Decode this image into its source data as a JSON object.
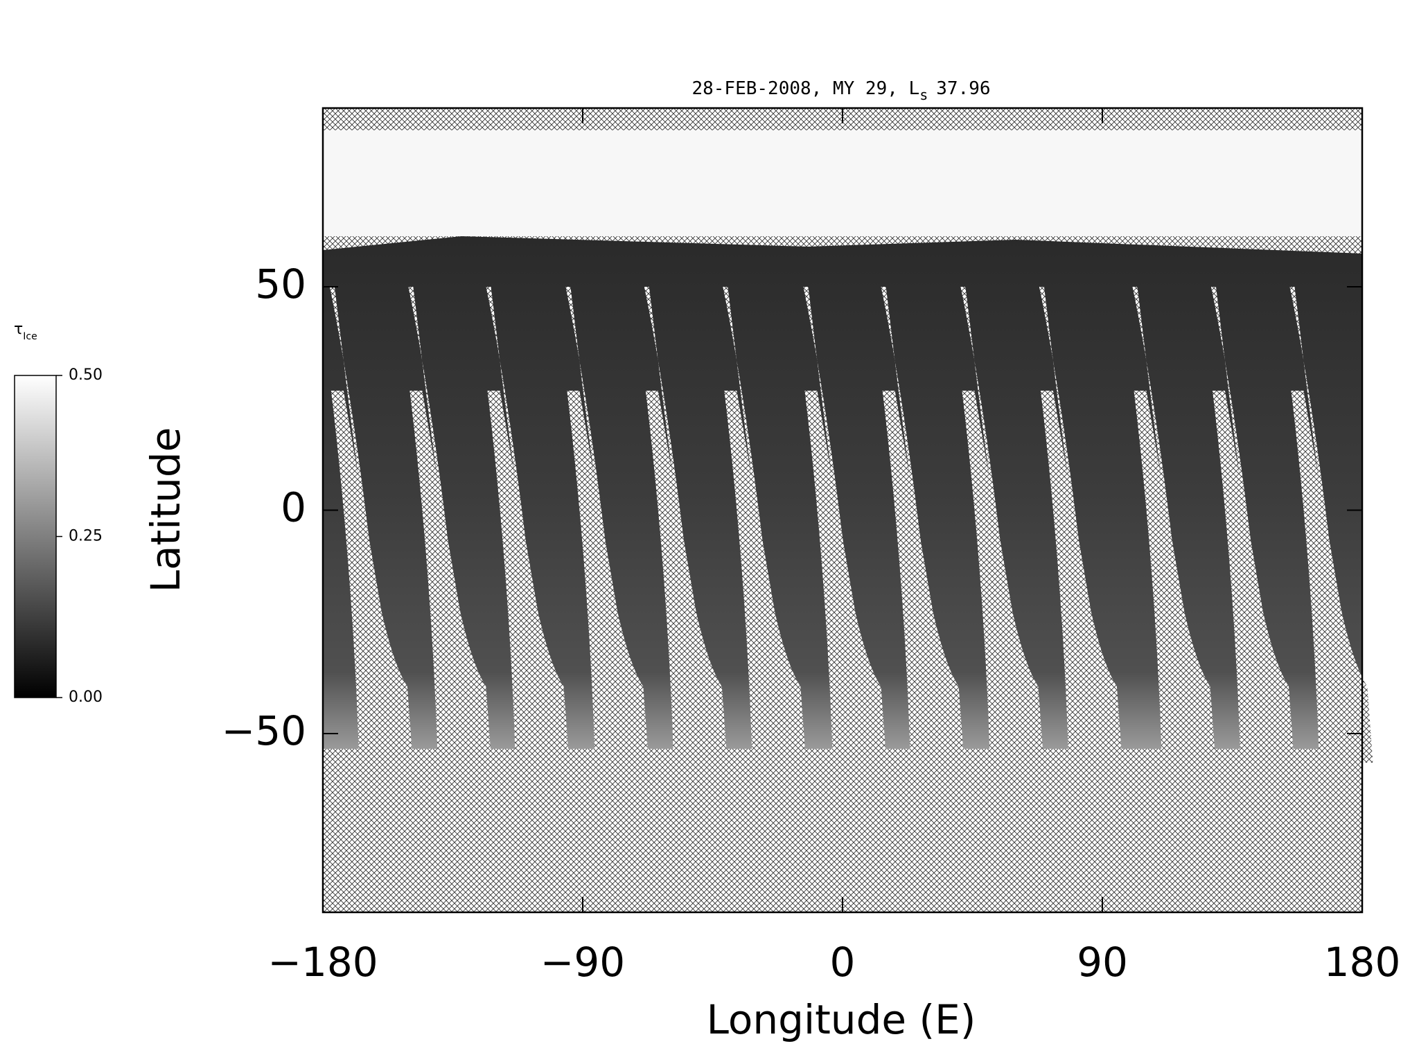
{
  "chart_data": {
    "type": "map",
    "title": "28-FEB-2008, MY 29,  L",
    "title_subscript": "s",
    "title_suffix": "37.96",
    "x_label": "Longitude (E)",
    "y_label": "Latitude",
    "xlim": [
      -180,
      180
    ],
    "ylim": [
      -90,
      90
    ],
    "xticks": [
      {
        "value": -180,
        "label": "−180"
      },
      {
        "value": -90,
        "label": "−90"
      },
      0,
      90,
      180
    ],
    "yticks": [
      {
        "value": -50,
        "label": "−50"
      },
      0,
      50
    ],
    "colorbar": {
      "label": "τ",
      "label_subscript": "Ice",
      "lim": [
        0,
        0.5
      ],
      "ticks": [
        {
          "value": 0,
          "label": "0.00"
        },
        {
          "value": 0.25,
          "label": "0.25"
        },
        {
          "value": 0.5,
          "label": "0.50"
        }
      ]
    }
  }
}
